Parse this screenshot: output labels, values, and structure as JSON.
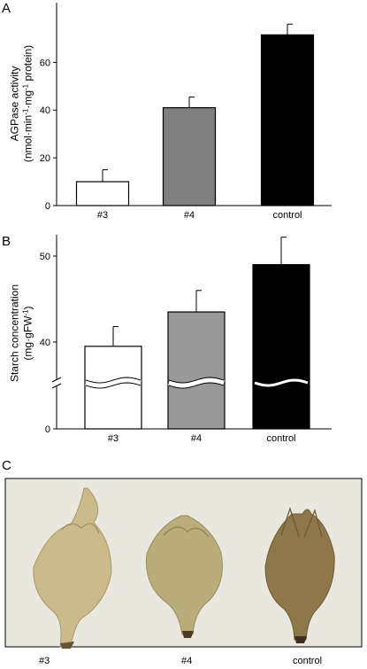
{
  "panels": {
    "a": {
      "letter": "A"
    },
    "b": {
      "letter": "B"
    },
    "c": {
      "letter": "C"
    }
  },
  "chart_data": [
    {
      "type": "bar",
      "categories": [
        "#3",
        "#4",
        "control"
      ],
      "values": [
        10,
        41,
        71.5
      ],
      "errors": [
        5,
        4.5,
        4.5
      ],
      "bar_colors": [
        "#ffffff",
        "#808080",
        "#000000"
      ],
      "ylabel_line1": "AGPase activity",
      "ylabel_line2_parts": [
        "(nmol·min",
        "-1",
        "·mg",
        "-1",
        " protein)"
      ],
      "yticks": [
        0,
        20,
        40,
        60
      ],
      "ylim": [
        0,
        85
      ]
    },
    {
      "type": "bar",
      "categories": [
        "#3",
        "#4",
        "control"
      ],
      "values": [
        39.5,
        43.5,
        49
      ],
      "errors": [
        2.3,
        2.5,
        3.2
      ],
      "bar_colors": [
        "#ffffff",
        "#999999",
        "#000000"
      ],
      "ylabel_line1": "Starch concentration",
      "ylabel_line2_parts": [
        "(mg·gFW",
        "-1",
        ")"
      ],
      "yticks": [
        0,
        40,
        50
      ],
      "ylim": [
        0,
        52
      ],
      "axis_break": true
    }
  ],
  "photo": {
    "labels": [
      "#3",
      "#4",
      "control"
    ],
    "background": "#e9e8df",
    "fruit_colors": [
      "#c9b98a",
      "#b7ad7a",
      "#8b7448"
    ]
  }
}
